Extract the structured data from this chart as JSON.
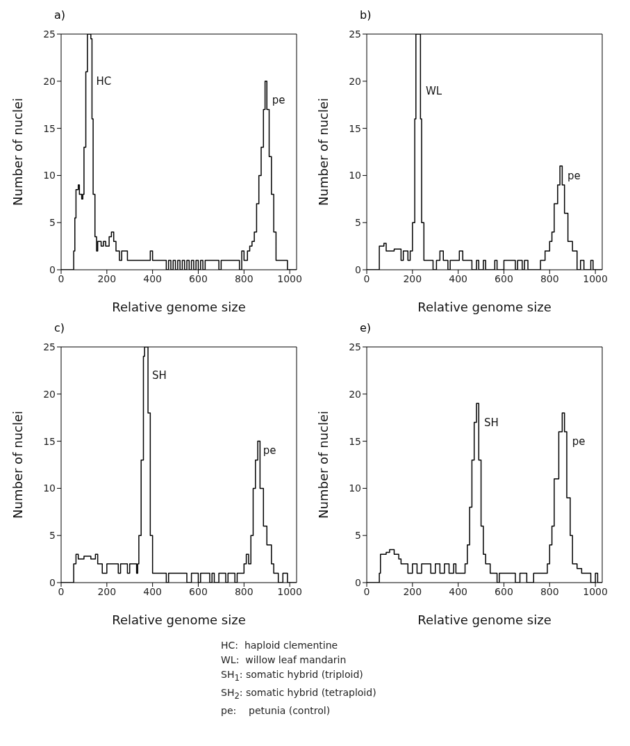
{
  "chart_data": [
    {
      "type": "step",
      "title": "a)",
      "xlabel": "Relative genome size",
      "ylabel": "Number of nuclei",
      "color": "#000000",
      "marker": "none",
      "grid": false,
      "xlim": [
        0,
        1030
      ],
      "ylim": [
        0,
        25
      ],
      "xticks": [
        0,
        200,
        400,
        600,
        800,
        1000
      ],
      "yticks": [
        0,
        5,
        10,
        15,
        20,
        25
      ],
      "x": [
        0,
        50,
        55,
        60,
        65,
        75,
        80,
        90,
        95,
        100,
        108,
        115,
        125,
        130,
        135,
        140,
        148,
        155,
        160,
        175,
        185,
        195,
        210,
        220,
        230,
        240,
        255,
        265,
        290,
        390,
        400,
        460,
        470,
        480,
        490,
        500,
        510,
        520,
        530,
        540,
        550,
        560,
        570,
        580,
        590,
        600,
        610,
        620,
        630,
        640,
        690,
        700,
        780,
        790,
        800,
        815,
        825,
        835,
        845,
        855,
        865,
        875,
        885,
        892,
        900,
        910,
        920,
        930,
        940,
        990,
        1000,
        1030
      ],
      "values": [
        0,
        0,
        2,
        5.5,
        8.5,
        9,
        8,
        7.5,
        8,
        13,
        21,
        25,
        25,
        24.5,
        16,
        8,
        3.5,
        2,
        3,
        2.5,
        3,
        2.5,
        3.5,
        4,
        3,
        2,
        1,
        2,
        1,
        2,
        1,
        0,
        1,
        0,
        1,
        0,
        1,
        0,
        1,
        0,
        1,
        0,
        1,
        0,
        1,
        0,
        1,
        0,
        1,
        1,
        0,
        1,
        0,
        2,
        1,
        2,
        2.5,
        3,
        4,
        7,
        10,
        13,
        17,
        20,
        17,
        12,
        8,
        4,
        1,
        0,
        0,
        0
      ],
      "annotations": [
        {
          "text": "HC",
          "x": 135,
          "y": 20
        },
        {
          "text": "pe",
          "x": 905,
          "y": 18
        }
      ]
    },
    {
      "type": "step",
      "title": "b)",
      "xlabel": "Relative genome size",
      "ylabel": "Number of nuclei",
      "color": "#000000",
      "marker": "none",
      "grid": false,
      "xlim": [
        0,
        1030
      ],
      "ylim": [
        0,
        25
      ],
      "xticks": [
        0,
        200,
        400,
        600,
        800,
        1000
      ],
      "yticks": [
        0,
        5,
        10,
        15,
        20,
        25
      ],
      "x": [
        0,
        50,
        55,
        75,
        85,
        120,
        150,
        160,
        180,
        190,
        200,
        210,
        215,
        235,
        240,
        250,
        280,
        290,
        305,
        320,
        335,
        355,
        365,
        405,
        420,
        460,
        480,
        490,
        510,
        520,
        560,
        570,
        600,
        650,
        660,
        680,
        690,
        705,
        760,
        780,
        800,
        810,
        820,
        835,
        845,
        855,
        865,
        880,
        900,
        920,
        935,
        950,
        980,
        990,
        1030
      ],
      "values": [
        0,
        0,
        2.5,
        2.8,
        2,
        2.2,
        1,
        2,
        1,
        2,
        5,
        16,
        25,
        16,
        5,
        1,
        1,
        0,
        1,
        2,
        1,
        0,
        1,
        2,
        1,
        0,
        1,
        0,
        1,
        0,
        1,
        0,
        1,
        0,
        1,
        0,
        1,
        0,
        1,
        2,
        3,
        4,
        7,
        9,
        11,
        9,
        6,
        3,
        2,
        0,
        1,
        0,
        1,
        0,
        0
      ],
      "annotations": [
        {
          "text": "WL",
          "x": 240,
          "y": 19
        },
        {
          "text": "pe",
          "x": 860,
          "y": 10
        }
      ]
    },
    {
      "type": "step",
      "title": "c)",
      "xlabel": "Relative genome size",
      "ylabel": "Number of nuclei",
      "color": "#000000",
      "marker": "none",
      "grid": false,
      "xlim": [
        0,
        1030
      ],
      "ylim": [
        0,
        25
      ],
      "xticks": [
        0,
        200,
        400,
        600,
        800,
        1000
      ],
      "yticks": [
        0,
        5,
        10,
        15,
        20,
        25
      ],
      "x": [
        0,
        50,
        55,
        65,
        75,
        100,
        130,
        150,
        160,
        180,
        200,
        250,
        260,
        290,
        300,
        330,
        335,
        340,
        350,
        360,
        365,
        380,
        390,
        400,
        460,
        470,
        550,
        570,
        600,
        610,
        650,
        660,
        670,
        690,
        720,
        730,
        760,
        770,
        800,
        810,
        820,
        830,
        840,
        850,
        860,
        870,
        885,
        900,
        920,
        930,
        950,
        970,
        990,
        1030
      ],
      "values": [
        0,
        0,
        2,
        3,
        2.5,
        2.8,
        2.5,
        3,
        2,
        1,
        2,
        1,
        2,
        1,
        2,
        1,
        2,
        5,
        13,
        24,
        25,
        18,
        5,
        1,
        0,
        1,
        0,
        1,
        0,
        1,
        0,
        1,
        0,
        1,
        0,
        1,
        0,
        1,
        2,
        3,
        2,
        5,
        10,
        13,
        15,
        10,
        6,
        4,
        2,
        1,
        0,
        1,
        0,
        0
      ],
      "annotations": [
        {
          "text": "SH",
          "x": 380,
          "y": 22
        },
        {
          "text": "pe",
          "x": 865,
          "y": 14
        }
      ]
    },
    {
      "type": "step",
      "title": "e)",
      "xlabel": "Relative genome size",
      "ylabel": "Number of nuclei",
      "color": "#000000",
      "marker": "none",
      "grid": false,
      "xlim": [
        0,
        1030
      ],
      "ylim": [
        0,
        25
      ],
      "xticks": [
        0,
        200,
        400,
        600,
        800,
        1000
      ],
      "yticks": [
        0,
        5,
        10,
        15,
        20,
        25
      ],
      "x": [
        0,
        50,
        55,
        60,
        85,
        100,
        120,
        140,
        150,
        180,
        200,
        220,
        240,
        280,
        300,
        320,
        340,
        360,
        380,
        390,
        430,
        440,
        450,
        460,
        470,
        480,
        490,
        500,
        510,
        520,
        540,
        570,
        580,
        650,
        670,
        700,
        730,
        790,
        800,
        810,
        820,
        840,
        855,
        865,
        875,
        890,
        900,
        920,
        940,
        980,
        1000,
        1010,
        1030
      ],
      "values": [
        0,
        0,
        1,
        3,
        3.2,
        3.5,
        3,
        2.5,
        2,
        1,
        2,
        1,
        2,
        1,
        2,
        1,
        2,
        1,
        2,
        1,
        2,
        4,
        8,
        13,
        17,
        19,
        13,
        6,
        3,
        2,
        1,
        0,
        1,
        0,
        1,
        0,
        1,
        2,
        4,
        6,
        11,
        16,
        18,
        16,
        9,
        5,
        2,
        1.5,
        1,
        0,
        1,
        0,
        0
      ],
      "annotations": [
        {
          "text": "SH",
          "x": 495,
          "y": 17
        },
        {
          "text": "pe",
          "x": 880,
          "y": 15
        }
      ]
    },
    {
      "type": "other",
      "annotations": [
        "HC:  haploid clementine",
        "WL:  willow leaf mandarin",
        "SH$_{1}$: somatic hybrid (triploid)",
        "SH$_{2}$: somatic hybrid (tetraploid)",
        "pe:    petunia (control)"
      ]
    }
  ]
}
